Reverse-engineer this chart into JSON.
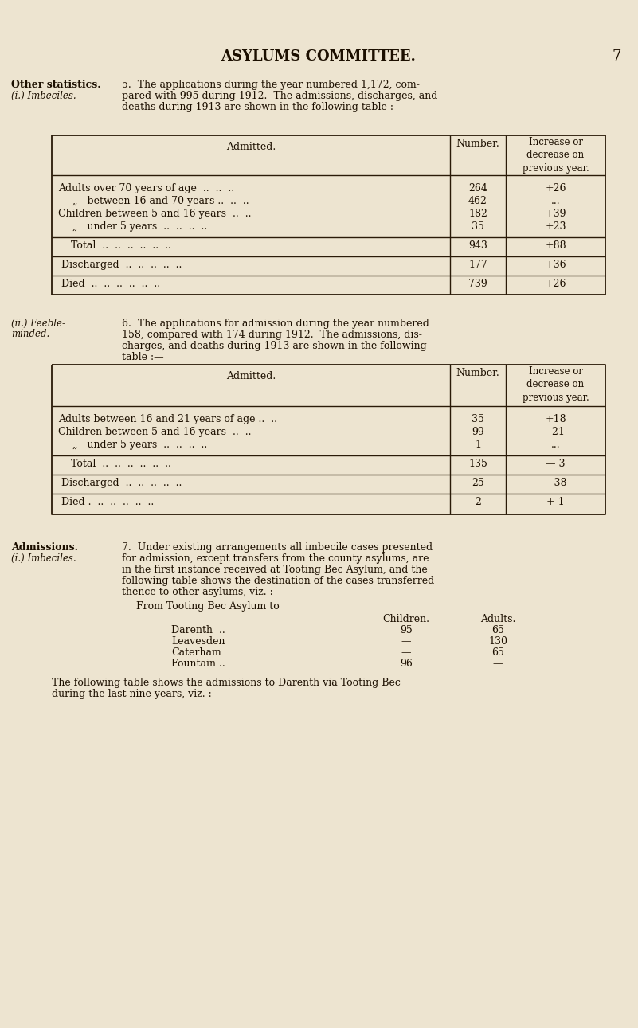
{
  "bg_color": "#ede4d0",
  "title": "ASYLUMS COMMITTEE.",
  "page_num": "7",
  "section_label1": "Other statistics.",
  "section_label2": "(i.) Imbeciles.",
  "para1_lines": [
    "5.  The applications during the year numbered 1,172, com-",
    "pared with 995 during 1912.  The admissions, discharges, and",
    "deaths during 1913 are shown in the following table :—"
  ],
  "table1_header_col1": "Admitted.",
  "table1_header_col2": "Number.",
  "table1_header_col3": "Increase or\ndecrease on\nprevious year.",
  "table1_rows": [
    [
      "Adults over 70 years of age  ..  ..  ..",
      "264",
      "+26"
    ],
    [
      "„   between 16 and 70 years ..  ..  ..",
      "462",
      "..."
    ],
    [
      "Children between 5 and 16 years  ..  ..",
      "182",
      "+39"
    ],
    [
      "„   under 5 years  ..  ..  ..  ..",
      "35",
      "+23"
    ]
  ],
  "table1_total": [
    "Total  ..  ..  ..  ..  ..  ..",
    "943",
    "+88"
  ],
  "table1_discharged": [
    "Discharged  ..  ..  ..  ..  ..",
    "177",
    "+36"
  ],
  "table1_died": [
    "Died  ..  ..  ..  ..  ..  ..",
    "739",
    "+26"
  ],
  "section_label3a": "(ii.) Feeble-",
  "section_label3b": "minded.",
  "para2_lines": [
    "6.  The applications for admission during the year numbered",
    "158, compared with 174 during 1912.  The admissions, dis-",
    "charges, and deaths during 1913 are shown in the following"
  ],
  "para2_cont": "table :—",
  "table2_header_col1": "Admitted.",
  "table2_header_col2": "Number.",
  "table2_header_col3": "Increase or\ndecrease on\nprevious year.",
  "table2_rows": [
    [
      "Adults between 16 and 21 years of age ..  ..",
      "35",
      "+18"
    ],
    [
      "Children between 5 and 16 years  ..  ..",
      "99",
      "‒21"
    ],
    [
      "„   under 5 years  ..  ..  ..  ..",
      "1",
      "..."
    ]
  ],
  "table2_total": [
    "Total  ..  ..  ..  ..  ..  ..",
    "135",
    "— 3"
  ],
  "table2_discharged": [
    "Discharged  ..  ..  ..  ..  ..",
    "25",
    "—38"
  ],
  "table2_died": [
    "Died .  ..  ..  ..  ..  ..",
    "2",
    "+ 1"
  ],
  "admissions_label1": "Admissions.",
  "admissions_label2": "(i.) Imbeciles.",
  "para3_lines": [
    "7.  Under existing arrangements all imbecile cases presented",
    "for admission, except transfers from the county asylums, are",
    "in the first instance received at Tooting Bec Asylum, and the",
    "following table shows the destination of the cases transferred",
    "thence to other asylums, viz. :—"
  ],
  "from_label": "From Tooting Bec Asylum to",
  "dest_col_children": "Children.",
  "dest_col_adults": "Adults.",
  "dest_rows": [
    [
      "Darenth  ..",
      "95",
      "65"
    ],
    [
      "Leavesden",
      "—",
      "130"
    ],
    [
      "Caterham",
      "—",
      "65"
    ],
    [
      "Fountain ..",
      "96",
      "—"
    ]
  ],
  "para4_lines": [
    "The following table shows the admissions to Darenth via Tooting Bec",
    "during the last nine years, viz. :—"
  ],
  "text_color": "#1c0f00",
  "line_color": "#2a1a08"
}
